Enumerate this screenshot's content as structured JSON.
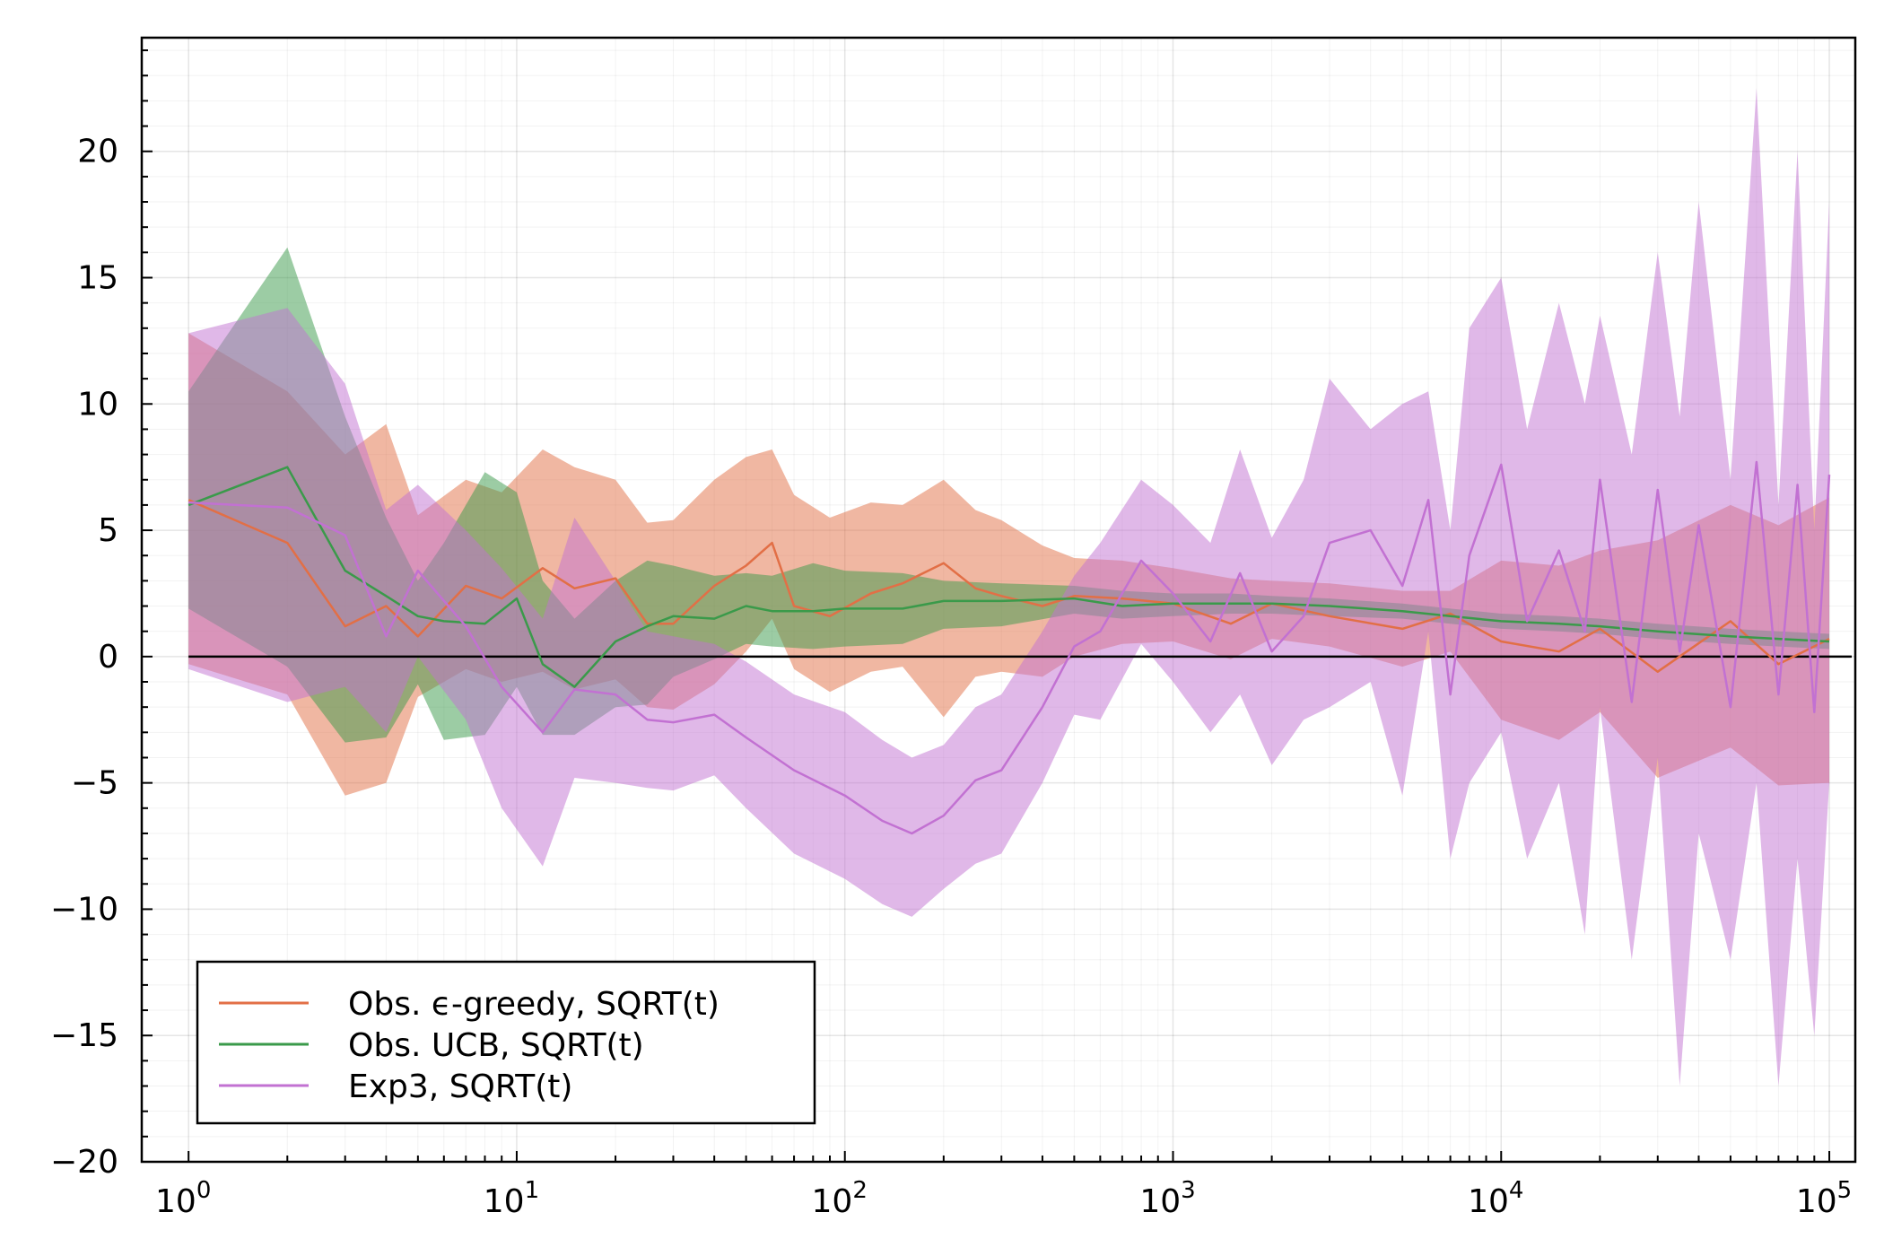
{
  "chart_data": {
    "type": "line",
    "title": "",
    "xlabel": "",
    "ylabel": "",
    "xscale": "log",
    "xlim": [
      0.72,
      120000
    ],
    "ylim": [
      -20,
      24.5
    ],
    "grid": true,
    "legend_position": "bottom-left",
    "x_ticks": [
      {
        "value": 1,
        "base": "10",
        "exp": "0"
      },
      {
        "value": 10,
        "base": "10",
        "exp": "1"
      },
      {
        "value": 100,
        "base": "10",
        "exp": "2"
      },
      {
        "value": 1000,
        "base": "10",
        "exp": "3"
      },
      {
        "value": 10000,
        "base": "10",
        "exp": "4"
      },
      {
        "value": 100000,
        "base": "10",
        "exp": "5"
      }
    ],
    "y_ticks": [
      {
        "value": 20,
        "label": "20"
      },
      {
        "value": 15,
        "label": "15"
      },
      {
        "value": 10,
        "label": "10"
      },
      {
        "value": 5,
        "label": "5"
      },
      {
        "value": 0,
        "label": "0"
      },
      {
        "value": -5,
        "label": "−5"
      },
      {
        "value": -10,
        "label": "−10"
      },
      {
        "value": -15,
        "label": "−15"
      },
      {
        "value": -20,
        "label": "−20"
      }
    ],
    "reference_line": {
      "y": 0,
      "x": [
        1,
        100000
      ],
      "color": "#000000"
    },
    "series": [
      {
        "name": "Obs. ϵ-greedy, SQRT(t)",
        "color": "#e26f46",
        "x": [
          1,
          2,
          3,
          4,
          5,
          7,
          9,
          12,
          15,
          20,
          25,
          30,
          40,
          50,
          60,
          70,
          90,
          120,
          150,
          200,
          250,
          300,
          400,
          500,
          700,
          1000,
          1500,
          2000,
          3000,
          5000,
          7000,
          10000,
          15000,
          20000,
          30000,
          50000,
          70000,
          100000
        ],
        "y": [
          6.2,
          4.5,
          1.2,
          2.0,
          0.8,
          2.8,
          2.3,
          3.5,
          2.7,
          3.1,
          1.3,
          1.3,
          2.8,
          3.6,
          4.5,
          2.0,
          1.6,
          2.5,
          2.9,
          3.7,
          2.7,
          2.4,
          2.0,
          2.4,
          2.3,
          2.1,
          1.3,
          2.1,
          1.6,
          1.1,
          1.7,
          0.6,
          0.2,
          1.1,
          -0.6,
          1.4,
          -0.3,
          0.7
        ],
        "upper": [
          12.8,
          10.5,
          8.0,
          9.2,
          5.6,
          7.0,
          6.5,
          8.2,
          7.5,
          7.0,
          5.3,
          5.4,
          7.0,
          7.9,
          8.2,
          6.4,
          5.5,
          6.1,
          6.0,
          7.0,
          5.8,
          5.4,
          4.4,
          3.9,
          3.8,
          3.5,
          3.1,
          3.0,
          2.9,
          2.6,
          2.6,
          3.8,
          3.6,
          4.2,
          4.6,
          6.0,
          5.2,
          6.3
        ],
        "lower": [
          -0.3,
          -1.5,
          -5.5,
          -5.0,
          -1.6,
          -0.5,
          -1.0,
          -0.6,
          -1.3,
          -0.9,
          -2.0,
          -2.1,
          -1.1,
          0.2,
          1.5,
          -0.5,
          -1.4,
          -0.6,
          -0.4,
          -2.4,
          -0.8,
          -0.6,
          -0.8,
          0.0,
          0.5,
          0.6,
          -0.1,
          0.7,
          0.4,
          -0.4,
          0.2,
          -2.5,
          -3.3,
          -2.2,
          -4.8,
          -3.6,
          -5.1,
          -5.0
        ]
      },
      {
        "name": "Obs. UCB, SQRT(t)",
        "color": "#3a9a4a",
        "x": [
          1,
          2,
          3,
          4,
          5,
          6,
          8,
          10,
          12,
          15,
          20,
          25,
          30,
          40,
          50,
          60,
          80,
          100,
          150,
          200,
          300,
          500,
          700,
          1000,
          1500,
          2000,
          3000,
          5000,
          7000,
          10000,
          15000,
          20000,
          30000,
          50000,
          70000,
          100000
        ],
        "y": [
          6.0,
          7.5,
          3.4,
          2.4,
          1.6,
          1.4,
          1.3,
          2.3,
          -0.3,
          -1.2,
          0.6,
          1.2,
          1.6,
          1.5,
          2.0,
          1.8,
          1.8,
          1.9,
          1.9,
          2.2,
          2.2,
          2.3,
          2.0,
          2.1,
          2.1,
          2.1,
          2.0,
          1.8,
          1.6,
          1.4,
          1.3,
          1.2,
          1.0,
          0.8,
          0.7,
          0.6
        ],
        "upper": [
          10.5,
          16.2,
          9.5,
          5.5,
          3.0,
          4.5,
          7.3,
          6.5,
          3.0,
          1.5,
          3.0,
          3.8,
          3.6,
          3.2,
          3.3,
          3.2,
          3.7,
          3.4,
          3.3,
          3.0,
          2.9,
          2.8,
          2.6,
          2.5,
          2.5,
          2.4,
          2.3,
          2.1,
          1.9,
          1.7,
          1.6,
          1.5,
          1.3,
          1.1,
          1.0,
          0.9
        ],
        "lower": [
          1.9,
          -0.4,
          -3.4,
          -3.2,
          -1.1,
          -3.3,
          -3.1,
          -1.2,
          -3.1,
          -3.1,
          -2.0,
          -1.9,
          -0.8,
          -0.1,
          0.5,
          0.4,
          0.3,
          0.4,
          0.5,
          1.1,
          1.2,
          1.7,
          1.5,
          1.6,
          1.7,
          1.7,
          1.6,
          1.5,
          1.3,
          1.1,
          1.0,
          0.9,
          0.7,
          0.5,
          0.4,
          0.3
        ]
      },
      {
        "name": "Exp3, SQRT(t)",
        "color": "#c271d2",
        "x": [
          1,
          2,
          3,
          4,
          5,
          7,
          9,
          12,
          15,
          20,
          25,
          30,
          40,
          50,
          70,
          100,
          130,
          160,
          200,
          250,
          300,
          400,
          500,
          600,
          800,
          1000,
          1300,
          1600,
          2000,
          2500,
          3000,
          4000,
          5000,
          6000,
          7000,
          8000,
          10000,
          12000,
          15000,
          18000,
          20000,
          25000,
          30000,
          35000,
          40000,
          50000,
          60000,
          70000,
          80000,
          90000,
          100000
        ],
        "y": [
          6.1,
          5.9,
          4.8,
          0.8,
          3.4,
          1.2,
          -1.2,
          -3.0,
          -1.3,
          -1.5,
          -2.5,
          -2.6,
          -2.3,
          -3.2,
          -4.5,
          -5.5,
          -6.5,
          -7.0,
          -6.3,
          -4.9,
          -4.5,
          -2.0,
          0.4,
          1.0,
          3.8,
          2.5,
          0.6,
          3.3,
          0.2,
          1.6,
          4.5,
          5.0,
          2.8,
          6.2,
          -1.5,
          4.0,
          7.6,
          1.4,
          4.2,
          1.0,
          7.0,
          -1.8,
          6.6,
          0.2,
          5.2,
          -2.0,
          7.7,
          -1.5,
          6.8,
          -2.2,
          7.2
        ],
        "upper": [
          12.8,
          13.8,
          10.8,
          5.8,
          6.8,
          5.0,
          3.5,
          1.5,
          5.5,
          3.0,
          1.0,
          0.8,
          0.5,
          -0.2,
          -1.5,
          -2.2,
          -3.3,
          -4.0,
          -3.5,
          -2.0,
          -1.5,
          1.0,
          3.2,
          4.5,
          7.0,
          6.0,
          4.5,
          8.2,
          4.7,
          7.0,
          11.0,
          9.0,
          10.0,
          10.5,
          5.0,
          13.0,
          15.0,
          9.0,
          14.0,
          10.0,
          13.5,
          8.0,
          16.0,
          9.5,
          18.0,
          7.0,
          22.5,
          6.0,
          20.0,
          5.0,
          18.0
        ],
        "lower": [
          -0.5,
          -1.8,
          -1.2,
          -3.0,
          0.0,
          -2.5,
          -6.0,
          -8.3,
          -4.8,
          -5.0,
          -5.2,
          -5.3,
          -4.7,
          -6.0,
          -7.8,
          -8.8,
          -9.8,
          -10.3,
          -9.2,
          -8.2,
          -7.8,
          -5.0,
          -2.3,
          -2.5,
          0.5,
          -1.0,
          -3.0,
          -1.5,
          -4.3,
          -2.5,
          -2.0,
          -1.0,
          -5.5,
          1.0,
          -8.0,
          -5.0,
          -3.0,
          -8.0,
          -5.0,
          -11.0,
          -2.0,
          -12.0,
          -4.0,
          -17.0,
          -7.0,
          -12.0,
          -5.0,
          -17.0,
          -8.0,
          -15.0,
          -5.0
        ]
      }
    ]
  }
}
